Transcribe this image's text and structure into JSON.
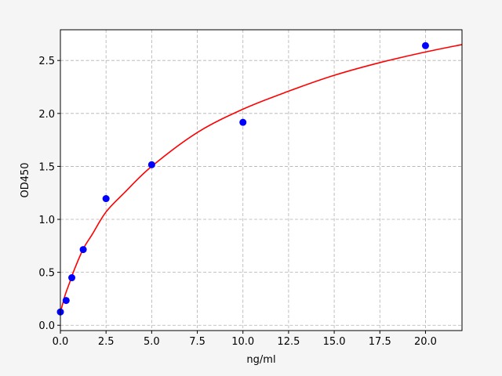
{
  "chart_data": {
    "type": "scatter",
    "title": "",
    "xlabel": "ng/ml",
    "ylabel": "OD450",
    "xlim": [
      0,
      22
    ],
    "ylim": [
      -0.05,
      2.79
    ],
    "xticks": [
      0,
      2.5,
      5,
      7.5,
      10,
      12.5,
      15,
      17.5,
      20
    ],
    "xtick_labels": [
      "0.0",
      "2.5",
      "5.0",
      "7.5",
      "10.0",
      "12.5",
      "15.0",
      "17.5",
      "20.0"
    ],
    "yticks": [
      0,
      0.5,
      1,
      1.5,
      2,
      2.5
    ],
    "ytick_labels": [
      "0.0",
      "0.5",
      "1.0",
      "1.5",
      "2.0",
      "2.5"
    ],
    "grid": true,
    "series": [
      {
        "kind": "points",
        "color": "#0000ff",
        "x": [
          0,
          0.3125,
          0.625,
          1.25,
          2.5,
          5,
          10,
          20
        ],
        "y": [
          0.126,
          0.234,
          0.449,
          0.715,
          1.196,
          1.516,
          1.916,
          2.64
        ]
      },
      {
        "kind": "fit-curve",
        "color": "#ff0000",
        "x": [
          0,
          0.25,
          0.5,
          0.75,
          1.25,
          1.75,
          2.5,
          3.5,
          5,
          7.5,
          10,
          12.5,
          15,
          17.5,
          20,
          22
        ],
        "y": [
          0.12,
          0.28,
          0.4,
          0.52,
          0.72,
          0.86,
          1.07,
          1.25,
          1.5,
          1.82,
          2.04,
          2.21,
          2.36,
          2.48,
          2.58,
          2.65
        ]
      }
    ]
  }
}
